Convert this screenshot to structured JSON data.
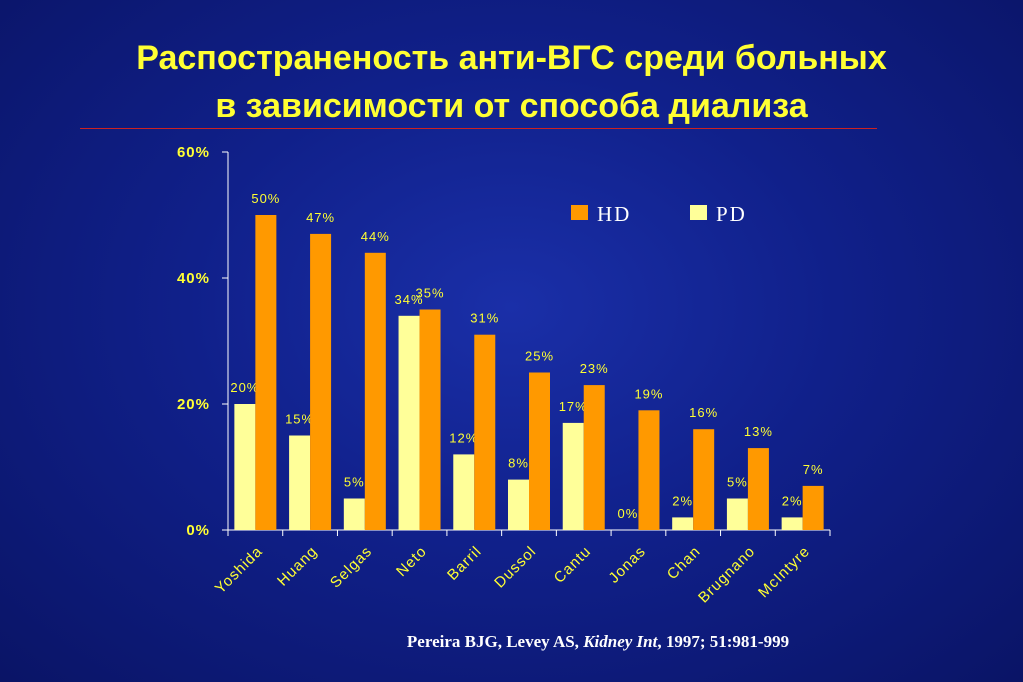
{
  "slide": {
    "title_line1": "Распостраненость анти-ВГС среди больных",
    "title_line2": "в зависимости от способа диализа"
  },
  "citation": {
    "authors": "Pereira BJG, Levey AS, ",
    "journal": "Kidney Int",
    "details": ", 1997; 51:981-999"
  },
  "colors": {
    "hd": "#ff9900",
    "pd": "#ffff99",
    "text": "#ffff33",
    "axis": "#ffffff",
    "title": "#ffff33"
  },
  "chart_data": {
    "type": "bar",
    "categories": [
      "Yoshida",
      "Huang",
      "Selgas",
      "Neto",
      "Barril",
      "Dussol",
      "Cantu",
      "Jonas",
      "Chan",
      "Brugnano",
      "McIntyre"
    ],
    "series": [
      {
        "name": "PD",
        "values": [
          20,
          15,
          5,
          34,
          12,
          8,
          17,
          0,
          2,
          5,
          2
        ],
        "labels": [
          "20%",
          "15%",
          "5%",
          "34%",
          "12%",
          "8%",
          "17%",
          "0%",
          "2%",
          "5%",
          "2%"
        ]
      },
      {
        "name": "HD",
        "values": [
          50,
          47,
          44,
          35,
          31,
          25,
          23,
          19,
          16,
          13,
          7
        ],
        "labels": [
          "50%",
          "47%",
          "44%",
          "35%",
          "31%",
          "25%",
          "23%",
          "19%",
          "16%",
          "13%",
          "7%"
        ]
      }
    ],
    "legend": [
      "HD",
      "PD"
    ],
    "legend_position": "top-right",
    "ylim": [
      0,
      60
    ],
    "yticks": [
      0,
      20,
      40,
      60
    ],
    "ytick_labels": [
      "0%",
      "20%",
      "40%",
      "60%"
    ],
    "grid": false
  }
}
